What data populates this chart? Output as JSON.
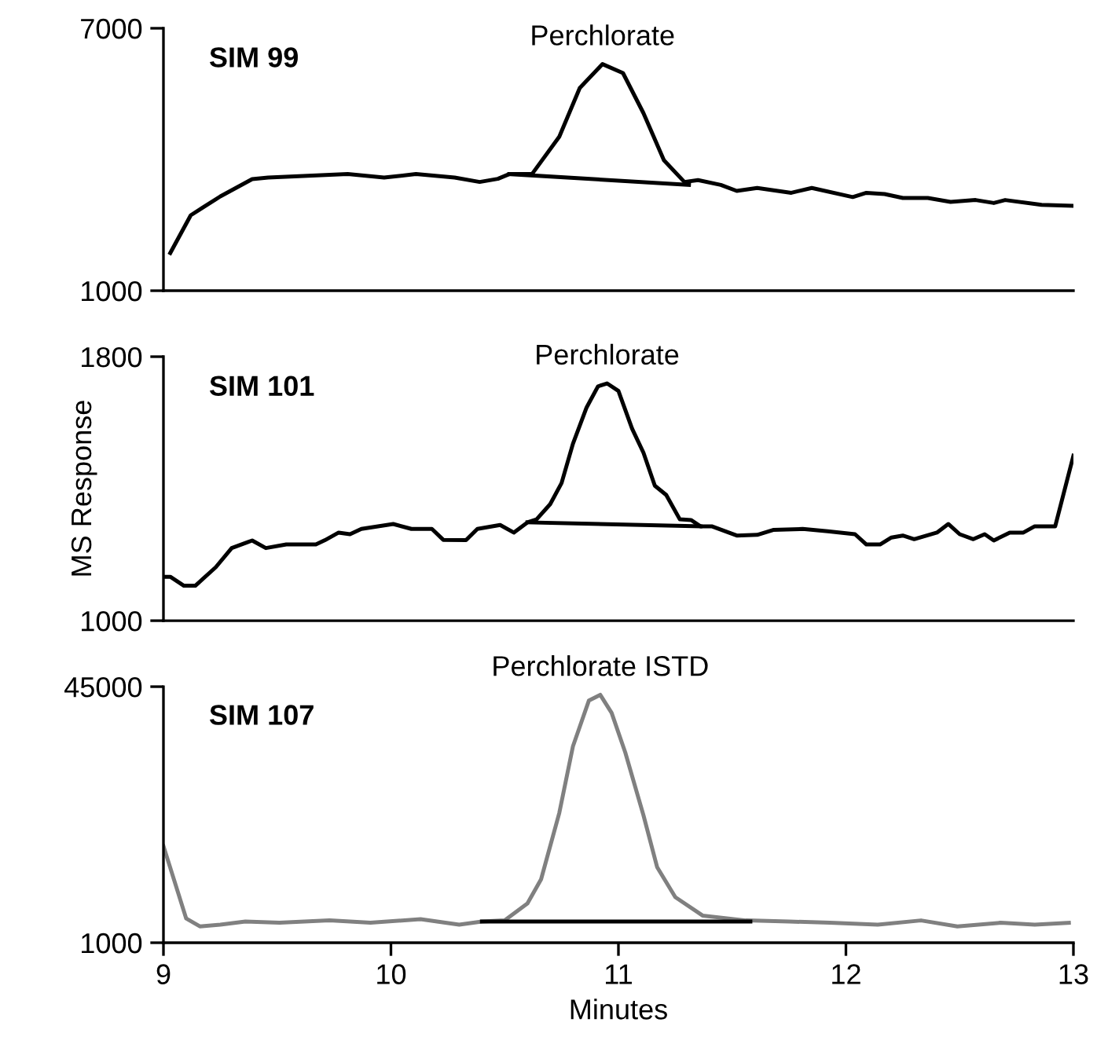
{
  "chart_data": [
    {
      "type": "line",
      "title": "SIM 99",
      "annotations": [
        {
          "text": "Perchlorate",
          "x": 10.93,
          "y": 6181
        }
      ],
      "tick_labels": "y",
      "grid": false,
      "legend": false,
      "xlim": [
        9,
        13
      ],
      "ylim": [
        1000,
        7000
      ],
      "yticks": [
        1000,
        7000
      ],
      "series": [
        {
          "color": "#000000",
          "x": [
            9.03,
            9.12,
            9.25,
            9.39,
            9.46,
            9.81,
            9.97,
            10.11,
            10.28,
            10.39,
            10.47,
            10.52,
            10.62,
            10.74,
            10.83,
            10.93,
            11.02,
            11.11,
            11.2,
            11.29,
            11.35,
            11.45,
            11.52,
            11.61,
            11.76,
            11.85,
            12.03,
            12.09,
            12.17,
            12.25,
            12.36,
            12.46,
            12.57,
            12.65,
            12.7,
            12.86,
            13.0
          ],
          "values": [
            1862,
            2725,
            3156,
            3551,
            3587,
            3666,
            3587,
            3666,
            3587,
            3486,
            3558,
            3666,
            3666,
            4521,
            5635,
            6181,
            5976,
            5060,
            3982,
            3486,
            3529,
            3418,
            3282,
            3350,
            3238,
            3350,
            3141,
            3238,
            3210,
            3120,
            3120,
            3030,
            3073,
            3005,
            3073,
            2962,
            2940
          ]
        },
        {
          "color": "#000000",
          "x": [
            10.52,
            11.31
          ],
          "values": [
            3666,
            3418
          ]
        }
      ]
    },
    {
      "type": "line",
      "title": "SIM 101",
      "ylabel": "MS Response",
      "annotations": [
        {
          "text": "Perchlorate",
          "x": 10.95,
          "y": 1719
        }
      ],
      "tick_labels": "y",
      "grid": false,
      "legend": false,
      "xlim": [
        9,
        13
      ],
      "ylim": [
        1000,
        1800
      ],
      "yticks": [
        1000,
        1800
      ],
      "series": [
        {
          "color": "#000000",
          "x": [
            9.0,
            9.03,
            9.09,
            9.14,
            9.23,
            9.3,
            9.37,
            9.39,
            9.45,
            9.54,
            9.67,
            9.71,
            9.77,
            9.82,
            9.87,
            10.01,
            10.09,
            10.18,
            10.23,
            10.33,
            10.38,
            10.48,
            10.54,
            10.6,
            10.64,
            10.7,
            10.75,
            10.8,
            10.86,
            10.91,
            10.95,
            11.0,
            11.06,
            11.11,
            11.16,
            11.21,
            11.27,
            11.32,
            11.36,
            11.41,
            11.52,
            11.61,
            11.68,
            11.81,
            11.92,
            12.04,
            12.09,
            12.15,
            12.2,
            12.25,
            12.3,
            12.4,
            12.45,
            12.5,
            12.56,
            12.61,
            12.65,
            12.72,
            12.78,
            12.83,
            12.92,
            13.0
          ],
          "values": [
            1133,
            1133,
            1106,
            1106,
            1162,
            1220,
            1238,
            1243,
            1220,
            1231,
            1231,
            1244,
            1267,
            1262,
            1278,
            1293,
            1278,
            1278,
            1245,
            1244,
            1278,
            1290,
            1267,
            1298,
            1307,
            1353,
            1417,
            1536,
            1646,
            1710,
            1719,
            1696,
            1582,
            1509,
            1409,
            1381,
            1307,
            1305,
            1286,
            1286,
            1258,
            1260,
            1275,
            1278,
            1271,
            1262,
            1231,
            1231,
            1252,
            1258,
            1247,
            1267,
            1293,
            1262,
            1247,
            1262,
            1243,
            1267,
            1267,
            1286,
            1286,
            1500
          ]
        },
        {
          "color": "#000000",
          "x": [
            10.6,
            11.36
          ],
          "values": [
            1298,
            1286
          ]
        }
      ]
    },
    {
      "type": "line",
      "title": "SIM 107",
      "xlabel": "Minutes",
      "annotations": [
        {
          "text": "Perchlorate ISTD",
          "x": 10.92,
          "y": 43600
        }
      ],
      "grid": false,
      "legend": false,
      "xlim": [
        9,
        13
      ],
      "ylim": [
        1000,
        45000
      ],
      "xticks": [
        9,
        10,
        11,
        12,
        13
      ],
      "yticks": [
        1000,
        45000
      ],
      "series": [
        {
          "color": "#808080",
          "x": [
            9.0,
            9.1,
            9.16,
            9.25,
            9.36,
            9.51,
            9.73,
            9.91,
            10.13,
            10.3,
            10.4,
            10.5,
            10.6,
            10.66,
            10.74,
            10.8,
            10.87,
            10.92,
            10.97,
            11.03,
            11.11,
            11.17,
            11.25,
            11.37,
            11.56,
            11.75,
            11.93,
            12.14,
            12.33,
            12.49,
            12.68,
            12.83,
            12.98
          ],
          "values": [
            17600,
            5160,
            3810,
            4100,
            4650,
            4430,
            4830,
            4430,
            5050,
            4100,
            4650,
            4830,
            7750,
            11900,
            23300,
            34750,
            42600,
            43600,
            40500,
            33700,
            22900,
            14000,
            8830,
            5670,
            4830,
            4650,
            4430,
            4100,
            4830,
            3810,
            4430,
            4100,
            4430
          ]
        },
        {
          "color": "#000000",
          "x": [
            10.4,
            11.58
          ],
          "values": [
            4650,
            4650
          ]
        }
      ]
    }
  ]
}
